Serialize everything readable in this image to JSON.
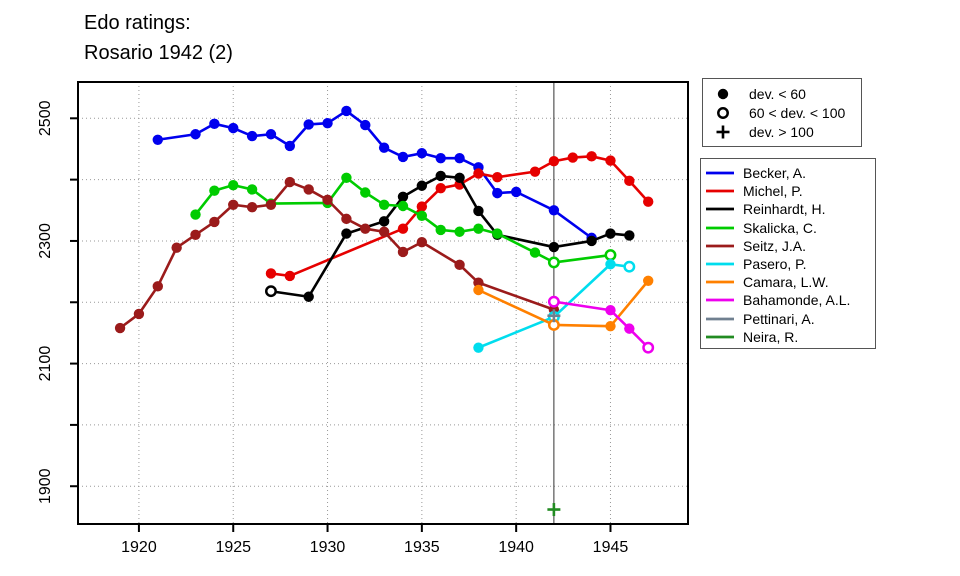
{
  "title": {
    "line1": "Edo ratings:",
    "line2": "Rosario 1942 (2)"
  },
  "chart_data": {
    "type": "line",
    "title": "Edo ratings: Rosario 1942 (2)",
    "xlabel": "",
    "ylabel": "",
    "grid": "dotted",
    "legend_position": "right",
    "x_ticks": [
      1920,
      1925,
      1930,
      1935,
      1940,
      1945
    ],
    "y_ticks_labeled": [
      1900,
      2100,
      2300,
      2500
    ],
    "y_grid": [
      1900,
      2000,
      2100,
      2200,
      2300,
      2400,
      2500
    ],
    "x_range": [
      1916.77,
      1949.11
    ],
    "y_range": [
      1838.4,
      2559.2
    ],
    "vline_x": 1942,
    "marker_legend": [
      {
        "marker": "filled",
        "label": "dev. < 60"
      },
      {
        "marker": "open",
        "label": "60 < dev. < 100"
      },
      {
        "marker": "plus",
        "label": "dev. > 100"
      }
    ],
    "series": [
      {
        "name": "Becker, A.",
        "color": "#0000EE",
        "points": [
          [
            1921,
            2465
          ],
          [
            1923,
            2474
          ],
          [
            1924,
            2491
          ],
          [
            1925,
            2484
          ],
          [
            1926,
            2471
          ],
          [
            1927,
            2474
          ],
          [
            1928,
            2455
          ],
          [
            1929,
            2490
          ],
          [
            1930,
            2492
          ],
          [
            1931,
            2512
          ],
          [
            1932,
            2489
          ],
          [
            1933,
            2452
          ],
          [
            1934,
            2437
          ],
          [
            1935,
            2443
          ],
          [
            1936,
            2435
          ],
          [
            1937,
            2435
          ],
          [
            1938,
            2420
          ],
          [
            1939,
            2378
          ],
          [
            1940,
            2380
          ],
          [
            1942,
            2350
          ],
          [
            1944,
            2305
          ]
        ]
      },
      {
        "name": "Michel, P.",
        "color": "#E60000",
        "points": [
          [
            1927,
            2247
          ],
          [
            1928,
            2243
          ],
          [
            1934,
            2320
          ],
          [
            1935,
            2356
          ],
          [
            1936,
            2386
          ],
          [
            1937,
            2392
          ],
          [
            1938,
            2410
          ],
          [
            1939,
            2404
          ],
          [
            1941,
            2413
          ],
          [
            1942,
            2430
          ],
          [
            1943,
            2436
          ],
          [
            1944,
            2438
          ],
          [
            1945,
            2431
          ],
          [
            1946,
            2398
          ],
          [
            1947,
            2364
          ]
        ]
      },
      {
        "name": "Reinhardt, H.",
        "color": "#000000",
        "points": [
          [
            1927,
            2218,
            "o"
          ],
          [
            1929,
            2209
          ],
          [
            1931,
            2312
          ],
          [
            1933,
            2332
          ],
          [
            1934,
            2372
          ],
          [
            1935,
            2390
          ],
          [
            1936,
            2406
          ],
          [
            1937,
            2403
          ],
          [
            1938,
            2349
          ],
          [
            1939,
            2310
          ],
          [
            1942,
            2290
          ],
          [
            1944,
            2300
          ],
          [
            1945,
            2312
          ],
          [
            1946,
            2309
          ]
        ]
      },
      {
        "name": "Skalicka, C.",
        "color": "#00CC00",
        "points": [
          [
            1923,
            2343
          ],
          [
            1924,
            2382
          ],
          [
            1925,
            2391
          ],
          [
            1926,
            2384
          ],
          [
            1927,
            2361
          ],
          [
            1930,
            2362
          ],
          [
            1931,
            2403
          ],
          [
            1932,
            2379
          ],
          [
            1933,
            2359
          ],
          [
            1934,
            2357
          ],
          [
            1935,
            2341
          ],
          [
            1936,
            2318
          ],
          [
            1937,
            2315
          ],
          [
            1938,
            2320
          ],
          [
            1939,
            2312
          ],
          [
            1941,
            2281
          ],
          [
            1942,
            2265,
            "o"
          ],
          [
            1945,
            2277,
            "o"
          ]
        ]
      },
      {
        "name": "Seitz, J.A.",
        "color": "#9B1B1B",
        "points": [
          [
            1919,
            2158
          ],
          [
            1920,
            2181
          ],
          [
            1921,
            2226
          ],
          [
            1922,
            2289
          ],
          [
            1923,
            2310
          ],
          [
            1924,
            2331
          ],
          [
            1925,
            2359
          ],
          [
            1926,
            2355
          ],
          [
            1927,
            2359
          ],
          [
            1928,
            2396
          ],
          [
            1929,
            2384
          ],
          [
            1930,
            2367
          ],
          [
            1931,
            2336
          ],
          [
            1932,
            2320
          ],
          [
            1933,
            2315
          ],
          [
            1934,
            2282
          ],
          [
            1935,
            2298
          ],
          [
            1937,
            2261
          ],
          [
            1938,
            2232
          ],
          [
            1942,
            2188
          ]
        ]
      },
      {
        "name": "Pasero, P.",
        "color": "#00DDEE",
        "points": [
          [
            1938,
            2126
          ],
          [
            1942,
            2176,
            "o"
          ],
          [
            1945,
            2262
          ],
          [
            1946,
            2258,
            "o"
          ]
        ]
      },
      {
        "name": "Camara, L.W.",
        "color": "#FF8000",
        "points": [
          [
            1938,
            2220
          ],
          [
            1942,
            2163,
            "o"
          ],
          [
            1945,
            2161
          ],
          [
            1947,
            2235
          ]
        ]
      },
      {
        "name": "Bahamonde, A.L.",
        "color": "#EE00EE",
        "points": [
          [
            1942,
            2201,
            "o"
          ],
          [
            1945,
            2187
          ],
          [
            1946,
            2157
          ],
          [
            1947,
            2126,
            "o"
          ]
        ]
      },
      {
        "name": "Pettinari, A.",
        "color": "#708090",
        "points": [
          [
            1942,
            2178,
            "p"
          ]
        ]
      },
      {
        "name": "Neira, R.",
        "color": "#228B22",
        "points": [
          [
            1942,
            1862,
            "p"
          ]
        ]
      }
    ]
  }
}
